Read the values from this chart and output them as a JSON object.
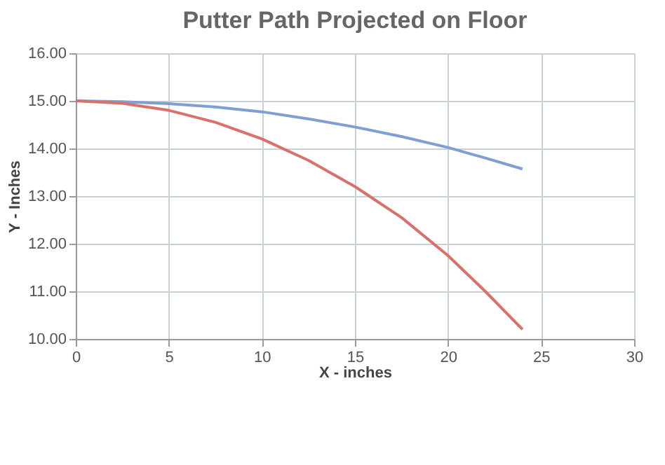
{
  "chart_data": {
    "type": "line",
    "title": "Putter Path Projected on Floor",
    "xlabel": "X - inches",
    "ylabel": "Y - Inches",
    "series": [
      {
        "color": "#7f9fd3",
        "x": [
          0,
          2.5,
          5,
          7.5,
          10,
          12.5,
          15,
          17.5,
          20,
          22,
          24
        ],
        "values": [
          15,
          14.98,
          14.94,
          14.87,
          14.77,
          14.62,
          14.45,
          14.25,
          14.02,
          13.8,
          13.57
        ]
      },
      {
        "color": "#d9706a",
        "x": [
          0,
          2.5,
          5,
          7.5,
          10,
          12.5,
          15,
          17.5,
          20,
          22,
          24
        ],
        "values": [
          15,
          14.95,
          14.8,
          14.55,
          14.2,
          13.75,
          13.2,
          12.55,
          11.75,
          11.0,
          10.2
        ]
      }
    ],
    "xlim": [
      0,
      30
    ],
    "xticks": [
      0,
      5,
      10,
      15,
      20,
      25,
      30
    ],
    "ylim": [
      10,
      16
    ],
    "yticks": [
      {
        "value": 10,
        "label": "10.00"
      },
      {
        "value": 11,
        "label": "11.00"
      },
      {
        "value": 12,
        "label": "12.00"
      },
      {
        "value": 13,
        "label": "13.00"
      },
      {
        "value": 14,
        "label": "14.00"
      },
      {
        "value": 15,
        "label": "15.00"
      },
      {
        "value": 16,
        "label": "16.00"
      }
    ],
    "grid": true,
    "legend": false,
    "marker": "none",
    "line_style": "solid"
  }
}
